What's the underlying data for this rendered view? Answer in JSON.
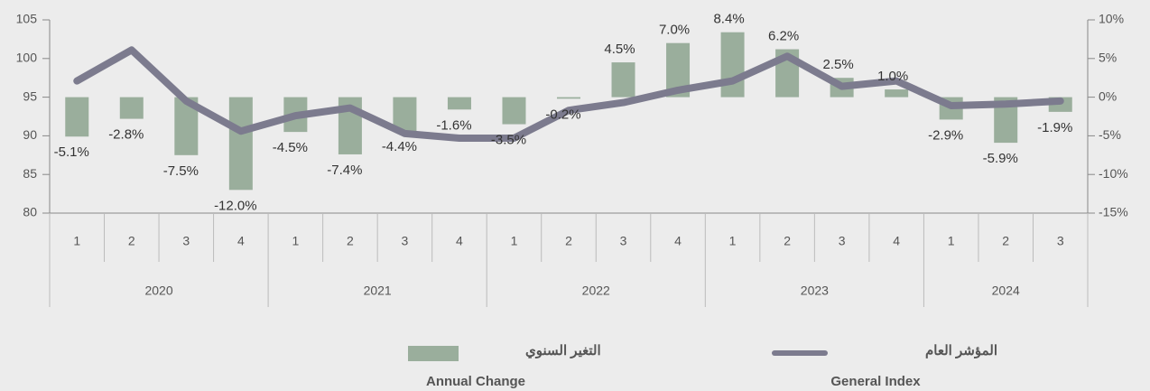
{
  "chart_data": {
    "type": "bar_line",
    "groups": [
      {
        "label": "2020",
        "categories": [
          "1",
          "2",
          "3",
          "4"
        ]
      },
      {
        "label": "2021",
        "categories": [
          "1",
          "2",
          "3",
          "4"
        ]
      },
      {
        "label": "2022",
        "categories": [
          "1",
          "2",
          "3",
          "4"
        ]
      },
      {
        "label": "2023",
        "categories": [
          "1",
          "2",
          "3",
          "4"
        ]
      },
      {
        "label": "2024",
        "categories": [
          "1",
          "2",
          "3"
        ]
      }
    ],
    "series": [
      {
        "name": "التغير السنوي",
        "name_en": "Annual Change",
        "type": "bar",
        "axis": "y2",
        "color": "#9aae9c",
        "values": [
          -5.1,
          -2.8,
          -7.5,
          -12.0,
          -4.5,
          -7.4,
          -4.4,
          -1.6,
          -3.5,
          -0.2,
          4.5,
          7.0,
          8.4,
          6.2,
          2.5,
          1.0,
          -2.9,
          -5.9,
          -1.9
        ],
        "value_labels": [
          "-5.1%",
          "-2.8%",
          "-7.5%",
          "-12.0%",
          "-4.5%",
          "-7.4%",
          "-4.4%",
          "-1.6%",
          "-3.5%",
          "-0.2%",
          "4.5%",
          "7.0%",
          "8.4%",
          "6.2%",
          "2.5%",
          "1.0%",
          "-2.9%",
          "-5.9%",
          "-1.9%"
        ]
      },
      {
        "name": "المؤشر العام",
        "name_en": "General Index",
        "type": "line",
        "axis": "y",
        "color": "#7c7b8e",
        "values": [
          97.1,
          101.1,
          94.5,
          90.6,
          92.6,
          93.6,
          90.3,
          89.7,
          89.7,
          93.3,
          94.3,
          95.9,
          97.1,
          100.3,
          96.4,
          97.1,
          93.9,
          94.1,
          94.5
        ]
      }
    ],
    "ylim": [
      80,
      105
    ],
    "yticks": [
      80,
      85,
      90,
      95,
      100,
      105
    ],
    "y2lim": [
      -15,
      10
    ],
    "y2ticks": [
      {
        "value": -15,
        "label": "-15%"
      },
      {
        "value": -10,
        "label": "-10%"
      },
      {
        "value": -5,
        "label": "-5%"
      },
      {
        "value": 0,
        "label": "0%"
      },
      {
        "value": 5,
        "label": "5%"
      },
      {
        "value": 10,
        "label": "10%"
      }
    ]
  }
}
